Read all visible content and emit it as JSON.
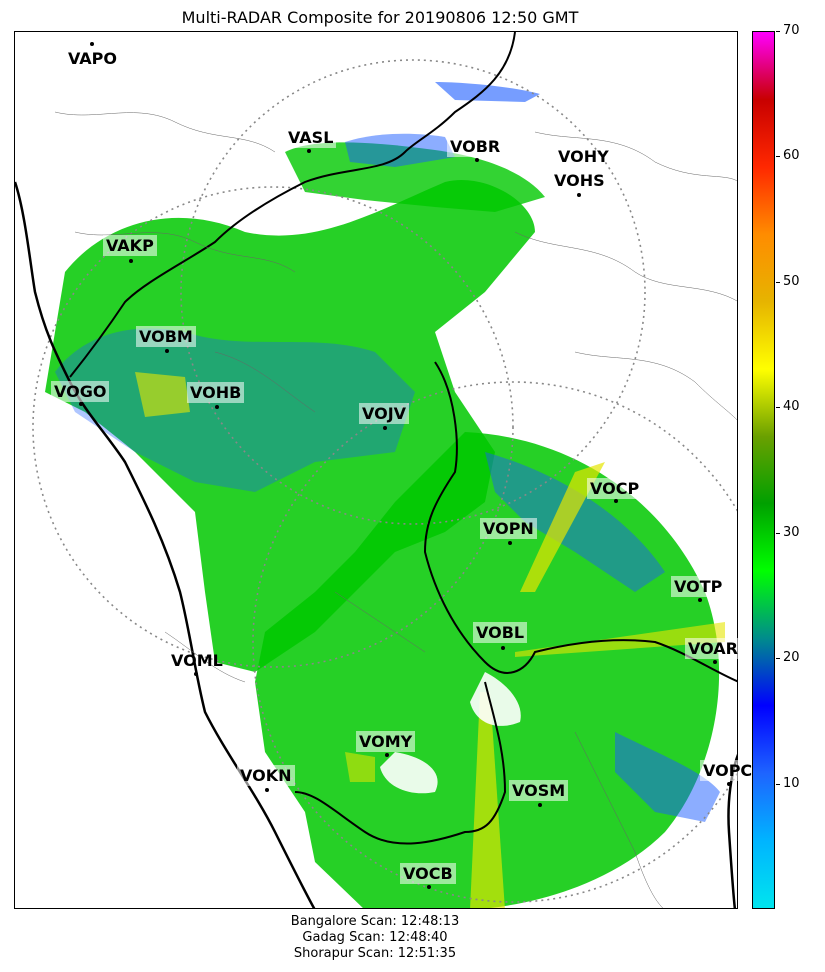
{
  "title": "Multi-RADAR Composite for 20190806 12:50 GMT",
  "colorbar": {
    "ticks": [
      {
        "label": "10",
        "value": 10
      },
      {
        "label": "20",
        "value": 20
      },
      {
        "label": "30",
        "value": 30
      },
      {
        "label": "40",
        "value": 40
      },
      {
        "label": "50",
        "value": 50
      },
      {
        "label": "60",
        "value": 60
      },
      {
        "label": "70",
        "value": 70
      }
    ],
    "min": 0,
    "max": 70,
    "stops": [
      "#00e5ee",
      "#00b4ff",
      "#1e64ff",
      "#0000ff",
      "#008c8c",
      "#00ff00",
      "#00a000",
      "#6aa000",
      "#ffff00",
      "#e6b400",
      "#ff8c00",
      "#ff2800",
      "#c80000",
      "#ff00ff"
    ]
  },
  "stations": [
    {
      "name": "VAPO",
      "boxed": false
    },
    {
      "name": "VASL",
      "boxed": true
    },
    {
      "name": "VOBR",
      "boxed": true
    },
    {
      "name": "VOHY",
      "boxed": false
    },
    {
      "name": "VOHS",
      "boxed": false
    },
    {
      "name": "VAKP",
      "boxed": true
    },
    {
      "name": "VOBM",
      "boxed": true
    },
    {
      "name": "VOGO",
      "boxed": true
    },
    {
      "name": "VOHB",
      "boxed": true
    },
    {
      "name": "VOJV",
      "boxed": true
    },
    {
      "name": "VOCP",
      "boxed": true
    },
    {
      "name": "VOPN",
      "boxed": true
    },
    {
      "name": "VOTP",
      "boxed": true
    },
    {
      "name": "VOBL",
      "boxed": true
    },
    {
      "name": "VOAR",
      "boxed": true
    },
    {
      "name": "VOML",
      "boxed": false
    },
    {
      "name": "VOMY",
      "boxed": true
    },
    {
      "name": "VOKN",
      "boxed": true
    },
    {
      "name": "VOPC",
      "boxed": true
    },
    {
      "name": "VOSM",
      "boxed": true
    },
    {
      "name": "VOCB",
      "boxed": true
    }
  ],
  "scan_info": [
    "Bangalore Scan: 12:48:13",
    "Gadag Scan: 12:48:40",
    "Shorapur Scan: 12:51:35"
  ]
}
